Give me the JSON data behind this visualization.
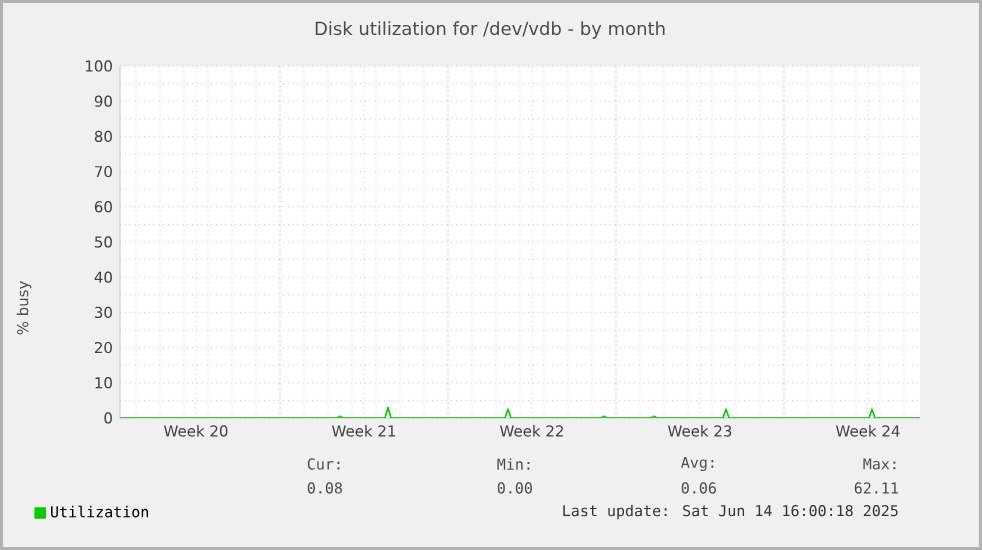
{
  "chart_data": {
    "type": "line",
    "title": "Disk utilization for /dev/vdb - by month",
    "ylabel": "% busy",
    "xlim": [
      "2025-05-12T08:00",
      "2025-06-14T16:00"
    ],
    "xticks": [
      {
        "value": "2025-05-15T12:00",
        "label": "Week 20"
      },
      {
        "value": "2025-05-19T00:00",
        "label": null
      },
      {
        "value": "2025-05-22T12:00",
        "label": "Week 21"
      },
      {
        "value": "2025-05-26T00:00",
        "label": null
      },
      {
        "value": "2025-05-29T12:00",
        "label": "Week 22"
      },
      {
        "value": "2025-06-02T00:00",
        "label": null
      },
      {
        "value": "2025-06-05T12:00",
        "label": "Week 23"
      },
      {
        "value": "2025-06-09T00:00",
        "label": null
      },
      {
        "value": "2025-06-12T12:00",
        "label": "Week 24"
      }
    ],
    "ylim": [
      0,
      100
    ],
    "yticks": [
      0,
      10,
      20,
      30,
      40,
      50,
      60,
      70,
      80,
      90,
      100
    ],
    "grid": true,
    "legend": "bottom left",
    "series": [
      {
        "name": "Utilization",
        "color": "#00cc00",
        "x": [
          "2025-05-12T08:00",
          "2025-05-21T09:00",
          "2025-05-21T12:00",
          "2025-05-21T15:00",
          "2025-05-23T09:00",
          "2025-05-23T12:00",
          "2025-05-23T15:00",
          "2025-05-28T09:00",
          "2025-05-28T12:00",
          "2025-05-28T15:00",
          "2025-06-01T09:00",
          "2025-06-01T12:00",
          "2025-06-01T15:00",
          "2025-06-03T11:00",
          "2025-06-03T14:00",
          "2025-06-03T17:00",
          "2025-06-06T11:00",
          "2025-06-06T14:00",
          "2025-06-06T17:00",
          "2025-06-12T13:00",
          "2025-06-12T16:00",
          "2025-06-12T19:00",
          "2025-06-14T16:00"
        ],
        "values": [
          0,
          0,
          0.5,
          0,
          0,
          3,
          0,
          0,
          2.5,
          0,
          0,
          0.5,
          0,
          0,
          0.5,
          0,
          0,
          2.5,
          0,
          0,
          2.5,
          0,
          0
        ]
      }
    ],
    "annotations": [
      "Cur:",
      "Min:",
      "Avg:",
      "Max:",
      "0.08",
      "0.00",
      "0.06",
      "62.11",
      "Last update: Sat Jun 14 16:00:18 2025"
    ]
  }
}
